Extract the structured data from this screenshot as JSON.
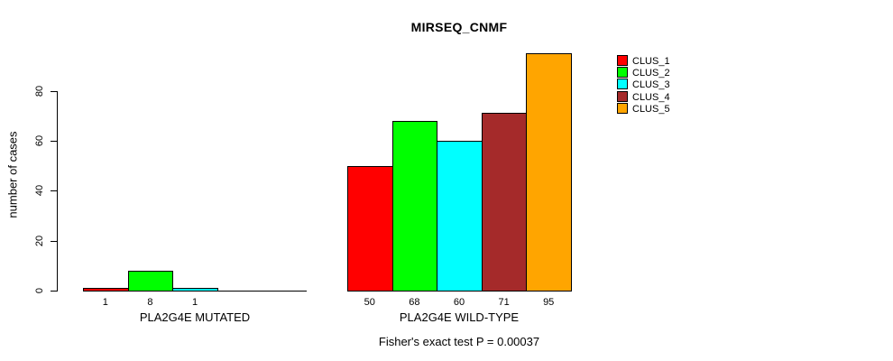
{
  "chart_data": {
    "type": "bar",
    "title": "MIRSEQ_CNMF",
    "ylabel": "number of cases",
    "footnote": "Fisher's exact test P = 0.00037",
    "ylim": [
      0,
      95
    ],
    "y_ticks": [
      0,
      20,
      40,
      60,
      80
    ],
    "grid": false,
    "legend_position": "top-right",
    "series": [
      {
        "name": "CLUS_1",
        "color": "#ff0000"
      },
      {
        "name": "CLUS_2",
        "color": "#00ff00"
      },
      {
        "name": "CLUS_3",
        "color": "#00ffff"
      },
      {
        "name": "CLUS_4",
        "color": "#a52a2a"
      },
      {
        "name": "CLUS_5",
        "color": "#ffa500"
      }
    ],
    "groups": [
      {
        "label": "PLA2G4E MUTATED",
        "values": [
          1,
          8,
          1,
          0,
          0
        ]
      },
      {
        "label": "PLA2G4E WILD-TYPE",
        "values": [
          50,
          68,
          60,
          71,
          95
        ]
      }
    ]
  }
}
